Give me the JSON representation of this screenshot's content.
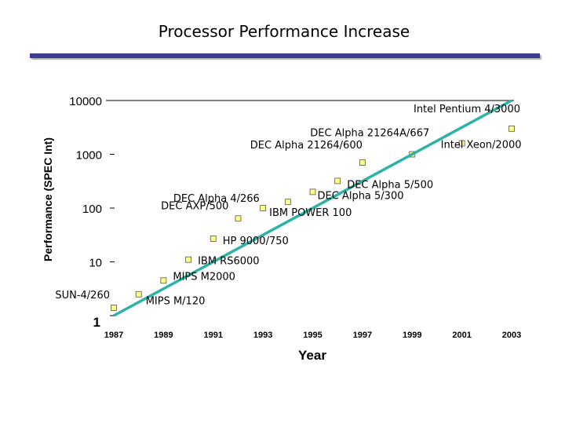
{
  "slide": {
    "title": "Processor Performance Increase"
  },
  "chart_data": {
    "type": "scatter",
    "title": "",
    "xlabel": "Year",
    "ylabel": "Performance (SPEC Int)",
    "xlim": [
      1987,
      2003
    ],
    "ylim": [
      1,
      10000
    ],
    "y_scale": "log",
    "x_ticks": [
      "1987",
      "1989",
      "1991",
      "1993",
      "1995",
      "1997",
      "1999",
      "2001",
      "2003"
    ],
    "y_ticks": [
      "1",
      "10",
      "100",
      "1000",
      "10000"
    ],
    "point_color": "#ffff80",
    "trend_color": "#2ab3a6",
    "points": [
      {
        "label": "SUN-4/260",
        "x": 1987,
        "y": 1.4
      },
      {
        "label": "MIPS M/120",
        "x": 1988,
        "y": 2.5
      },
      {
        "label": "MIPS M2000",
        "x": 1989,
        "y": 4.5
      },
      {
        "label": "IBM RS6000",
        "x": 1990,
        "y": 11
      },
      {
        "label": "HP 9000/750",
        "x": 1991,
        "y": 27
      },
      {
        "label": "DEC AXP/500",
        "x": 1992,
        "y": 64
      },
      {
        "label": "IBM POWER 100",
        "x": 1993,
        "y": 100
      },
      {
        "label": "DEC Alpha 4/266",
        "x": 1994,
        "y": 130
      },
      {
        "label": "DEC Alpha 5/300",
        "x": 1995,
        "y": 200
      },
      {
        "label": "DEC Alpha 5/500",
        "x": 1996,
        "y": 320
      },
      {
        "label": "DEC Alpha 21264/600",
        "x": 1997,
        "y": 700
      },
      {
        "label": "DEC Alpha 21264A/667",
        "x": 1999,
        "y": 1000
      },
      {
        "label": "Intel Xeon/2000",
        "x": 2001,
        "y": 1600
      },
      {
        "label": "Intel Pentium 4/3000",
        "x": 2003,
        "y": 3000
      }
    ],
    "trend": {
      "from": {
        "x": 1987,
        "y": 1
      },
      "to": {
        "x": 2003,
        "y": 10000
      }
    }
  }
}
